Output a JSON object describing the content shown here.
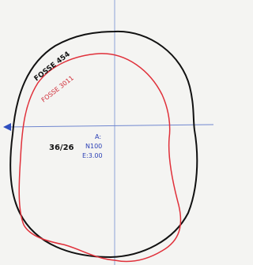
{
  "labels": {
    "outer": "FOSSE 454",
    "inner": "FOSSE 3011",
    "grid": "36/26",
    "point": "A:",
    "north": "N100",
    "east": "E:3.00"
  }
}
